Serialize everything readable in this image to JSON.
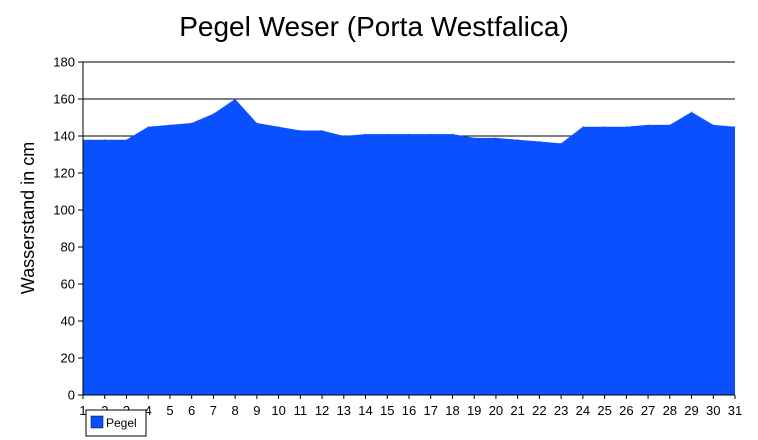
{
  "chart_data": {
    "type": "area",
    "title": "Pegel Weser (Porta Westfalica)",
    "xlabel": "",
    "ylabel": "Wasserstand in cm",
    "ylim": [
      0,
      180
    ],
    "yticks": [
      0,
      20,
      40,
      60,
      80,
      100,
      120,
      140,
      160,
      180
    ],
    "x": [
      1,
      2,
      3,
      4,
      5,
      6,
      7,
      8,
      9,
      10,
      11,
      12,
      13,
      14,
      15,
      16,
      17,
      18,
      19,
      20,
      21,
      22,
      23,
      24,
      25,
      26,
      27,
      28,
      29,
      30,
      31
    ],
    "series": [
      {
        "name": "Pegel",
        "color": "#0a50ff",
        "values": [
          138,
          138,
          138,
          145,
          146,
          147,
          152,
          160,
          147,
          145,
          143,
          143,
          140,
          141,
          141,
          141,
          141,
          141,
          139,
          139,
          138,
          137,
          136,
          145,
          145,
          145,
          146,
          146,
          153,
          146,
          145
        ]
      }
    ],
    "grid": "horizontal",
    "legend": "bottom-left"
  }
}
